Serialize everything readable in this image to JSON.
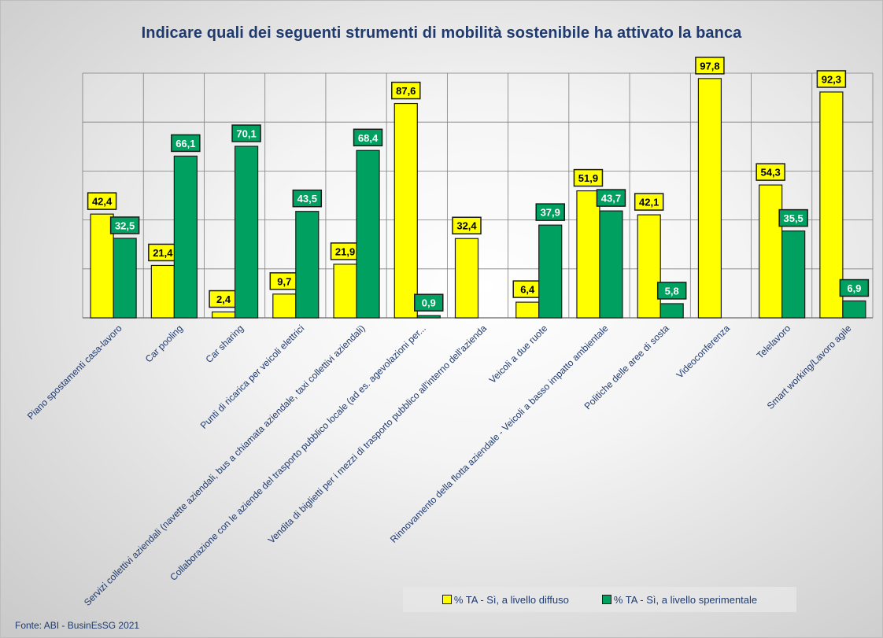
{
  "colors": {
    "series1": "#ffff00",
    "series2": "#00a060",
    "label_text_dark": "#000000",
    "label_text_light": "#ffffff",
    "title": "#1f3a6e",
    "grid": "#7f7f7f"
  },
  "chart_data": {
    "type": "bar",
    "title": "Indicare quali dei seguenti strumenti di mobilità sostenibile ha attivato la banca",
    "xlabel": "",
    "ylabel": "",
    "ylim": [
      0,
      100
    ],
    "grid": true,
    "legend_position": "bottom-right",
    "categories": [
      "Piano spostamenti casa-lavoro",
      "Car pooling",
      "Car sharing",
      "Punti di ricarica per veicoli elettrici",
      "Servizi collettivi aziendali (navette aziendali, bus a chiamata aziendale, taxi collettivi aziendali)",
      "Collaborazione con le aziende del trasporto pubblico locale (ad es. agevolazioni per...",
      "Vendita di biglietti per i mezzi di trasporto pubblico all'interno dell'azienda",
      "Veicoli a due ruote",
      "Rinnovamento della flotta aziendale - Veicoli a basso impatto ambientale",
      "Politiche delle aree di sosta",
      "Videoconferenza",
      "Telelavoro",
      "Smart working/Lavoro agile"
    ],
    "series": [
      {
        "name": "% TA - Sì, a livello diffuso",
        "values": [
          42.4,
          21.4,
          2.4,
          9.7,
          21.9,
          87.6,
          32.4,
          6.4,
          51.9,
          42.1,
          97.8,
          54.3,
          92.3
        ],
        "labels": [
          "42,4",
          "21,4",
          "2,4",
          "9,7",
          "21,9",
          "87,6",
          "32,4",
          "6,4",
          "51,9",
          "42,1",
          "97,8",
          "54,3",
          "92,3"
        ]
      },
      {
        "name": "% TA - Sì, a livello sperimentale",
        "values": [
          32.5,
          66.1,
          70.1,
          43.5,
          68.4,
          0.9,
          null,
          37.9,
          43.7,
          5.8,
          null,
          35.5,
          6.9
        ],
        "labels": [
          "32,5",
          "66,1",
          "70,1",
          "43,5",
          "68,4",
          "0,9",
          "",
          "37,9",
          "43,7",
          "5,8",
          "",
          "35,5",
          "6,9"
        ]
      }
    ]
  },
  "source": "Fonte: ABI - BusinEsSG 2021"
}
